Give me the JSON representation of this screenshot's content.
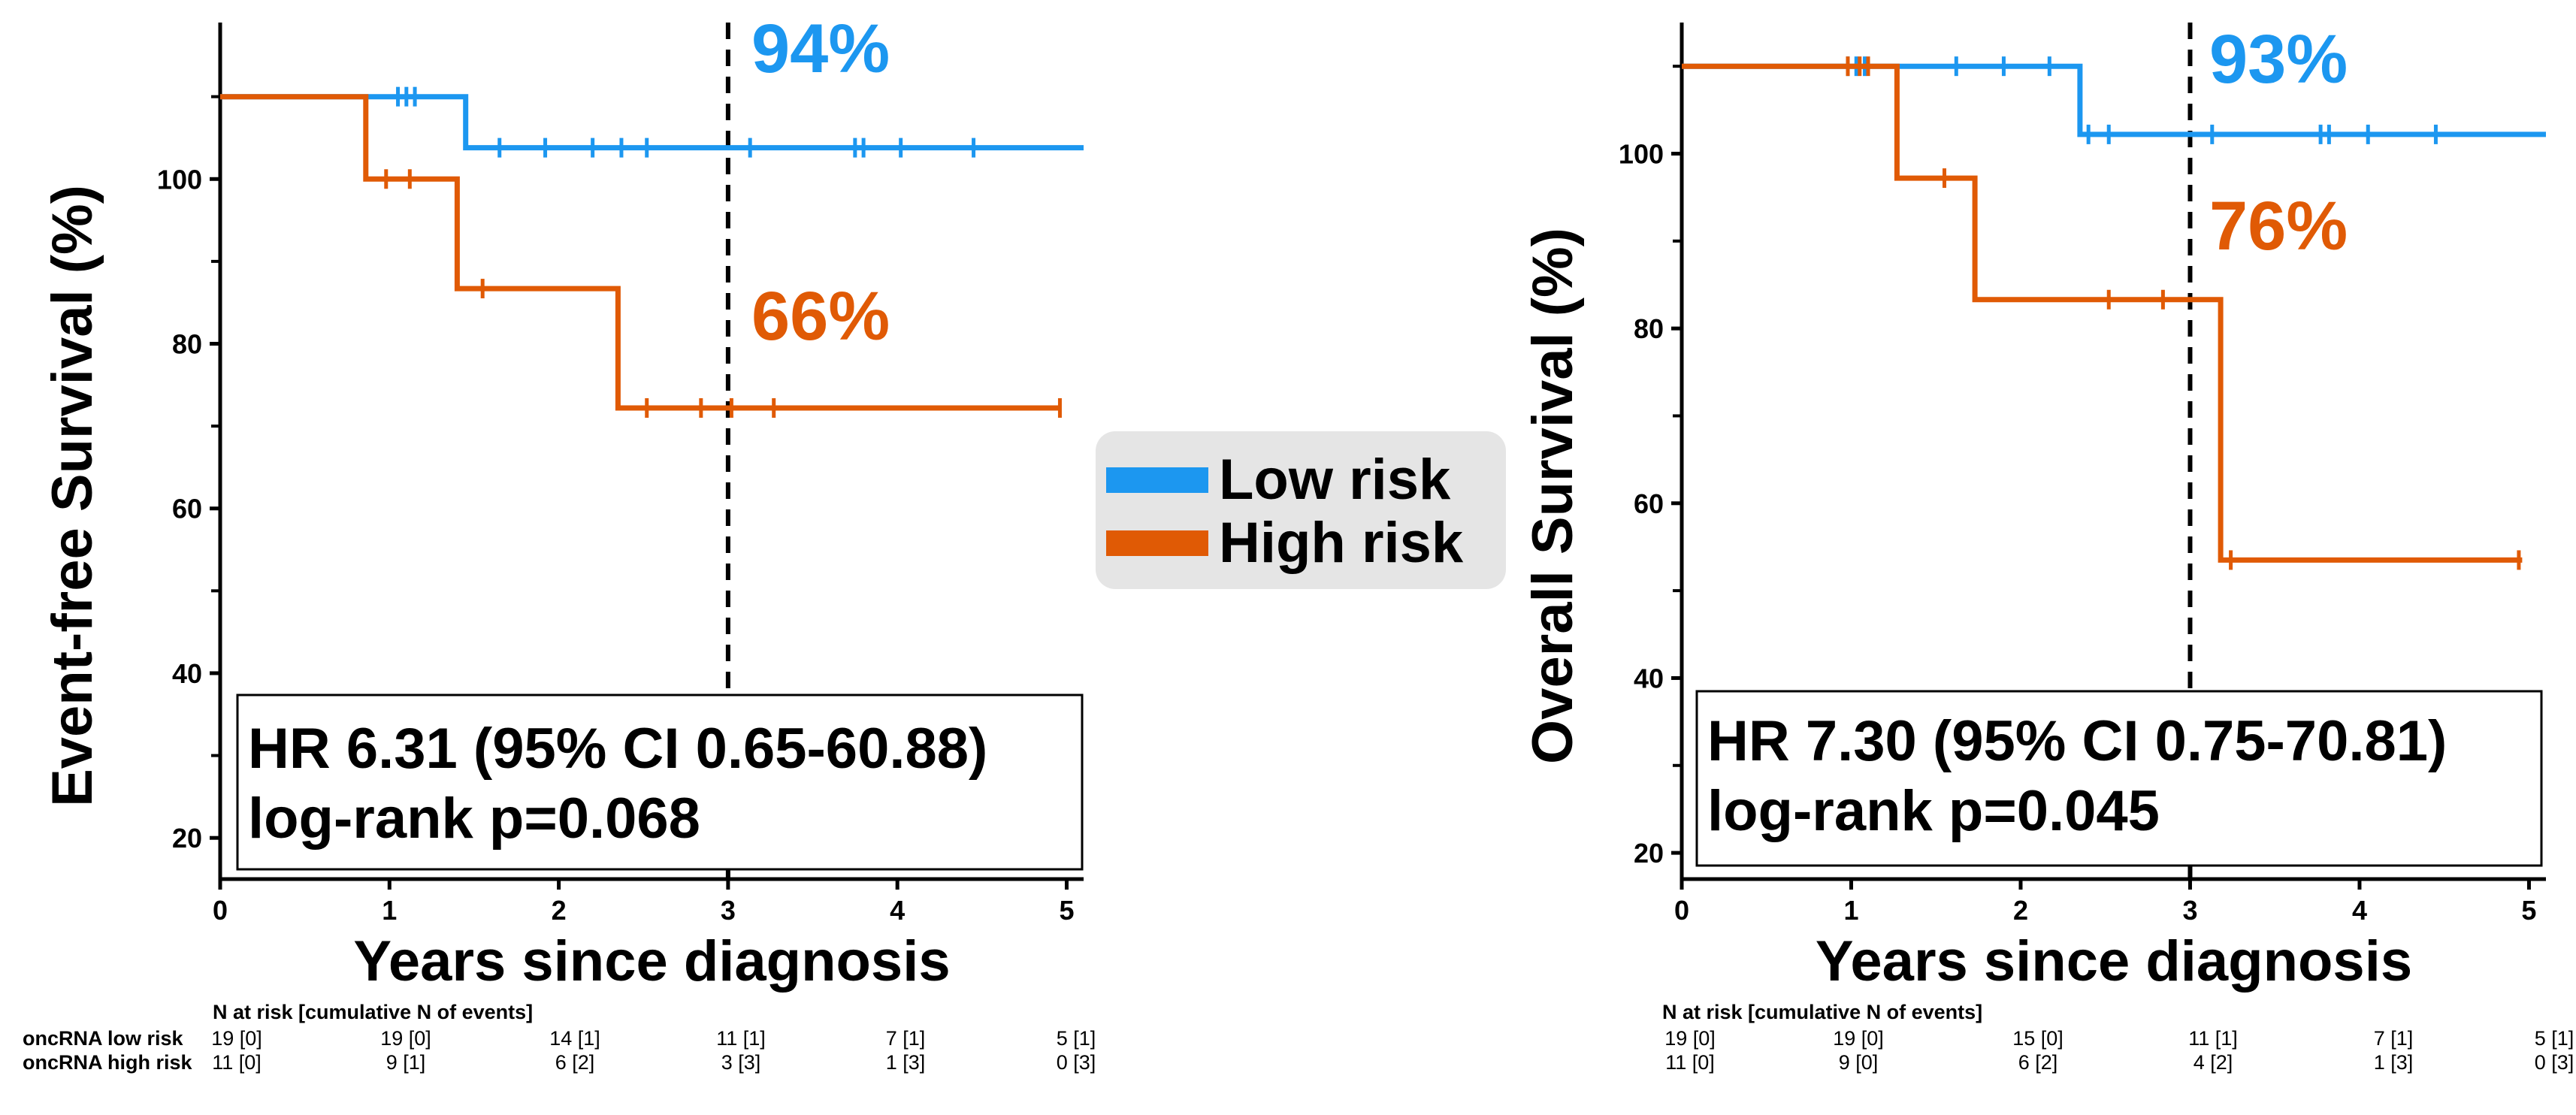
{
  "chart_data": [
    {
      "type": "line",
      "subtype": "kaplan-meier",
      "title": "",
      "xlabel": "Years since diagnosis",
      "ylabel": "Event-free Survival (%)",
      "xlim": [
        0,
        5.1
      ],
      "ylim": [
        15,
        119
      ],
      "xticks": [
        0,
        1,
        2,
        3,
        4,
        5
      ],
      "xtick_labels": [
        "0",
        "1",
        "2",
        "3",
        "4",
        "5"
      ],
      "yticks": [
        20,
        40,
        60,
        80,
        100
      ],
      "ytick_labels": [
        "20",
        "40",
        "60",
        "80",
        "100"
      ],
      "y_minor_ticks": [
        30,
        50,
        70,
        90,
        110
      ],
      "reference_line_x": 3,
      "series": [
        {
          "name": "Low risk",
          "color": "#1c97f0",
          "steps": [
            [
              0,
              110
            ],
            [
              1.45,
              110
            ],
            [
              1.45,
              103.8
            ],
            [
              5.1,
              103.8
            ]
          ],
          "censor_times": [
            1.05,
            1.1,
            1.15,
            1.65,
            1.92,
            2.2,
            2.37,
            2.52,
            3.13,
            3.75,
            3.8,
            4.02,
            4.45
          ],
          "annotation": "94%"
        },
        {
          "name": "High risk",
          "color": "#e05a05",
          "steps": [
            [
              0,
              110
            ],
            [
              0.86,
              110
            ],
            [
              0.86,
              100
            ],
            [
              1.4,
              100
            ],
            [
              1.4,
              86.7
            ],
            [
              2.35,
              86.7
            ],
            [
              2.35,
              72.2
            ],
            [
              4.96,
              72.2
            ]
          ],
          "censor_times": [
            0.98,
            1.12,
            1.55,
            2.52,
            2.84,
            3.02,
            3.27,
            4.96
          ],
          "annotation": "66%"
        }
      ],
      "stats": {
        "hr": "HR 6.31 (95% CI 0.65-60.88)",
        "p": "log-rank p=0.068"
      },
      "risk_table": {
        "title": "N at risk [cumulative N of events]",
        "rows": [
          {
            "label": "oncRNA low risk",
            "values": [
              "19 [0]",
              "19 [0]",
              "14 [1]",
              "11 [1]",
              "7 [1]",
              "5 [1]"
            ]
          },
          {
            "label": "oncRNA high risk",
            "values": [
              "11 [0]",
              "9 [1]",
              "6 [2]",
              "3 [3]",
              "1 [3]",
              "0 [3]"
            ]
          }
        ]
      }
    },
    {
      "type": "line",
      "subtype": "kaplan-meier",
      "title": "",
      "xlabel": "Years since diagnosis",
      "ylabel": "Overall Survival (%)",
      "xlim": [
        0,
        5.1
      ],
      "ylim": [
        17,
        115
      ],
      "xticks": [
        0,
        1,
        2,
        3,
        4,
        5
      ],
      "xtick_labels": [
        "0",
        "1",
        "2",
        "3",
        "4",
        "5"
      ],
      "yticks": [
        20,
        40,
        60,
        80,
        100
      ],
      "ytick_labels": [
        "20",
        "40",
        "60",
        "80",
        "100"
      ],
      "y_minor_ticks": [
        30,
        50,
        70,
        90,
        110
      ],
      "reference_line_x": 3,
      "series": [
        {
          "name": "Low risk",
          "color": "#1c97f0",
          "steps": [
            [
              0,
              110
            ],
            [
              2.35,
              110
            ],
            [
              2.35,
              102.2
            ],
            [
              5.1,
              102.2
            ]
          ],
          "censor_times": [
            0.98,
            1.03,
            1.08,
            1.62,
            1.9,
            2.17,
            2.4,
            2.52,
            3.13,
            3.77,
            3.82,
            4.05,
            4.45
          ],
          "annotation": "93%"
        },
        {
          "name": "High risk",
          "color": "#e05a05",
          "steps": [
            [
              0,
              110
            ],
            [
              1.27,
              110
            ],
            [
              1.27,
              97.2
            ],
            [
              1.73,
              97.2
            ],
            [
              1.73,
              83.3
            ],
            [
              3.18,
              83.3
            ],
            [
              3.18,
              53.5
            ],
            [
              4.96,
              53.5
            ]
          ],
          "censor_times": [
            0.98,
            1.05,
            1.1,
            1.55,
            2.52,
            2.84,
            3.24,
            4.94
          ],
          "annotation": "76%"
        }
      ],
      "stats": {
        "hr": "HR 7.30 (95% CI 0.75-70.81)",
        "p": "log-rank p=0.045"
      },
      "risk_table": {
        "title": "N at risk [cumulative N of events]",
        "rows": [
          {
            "label": "",
            "values": [
              "19 [0]",
              "19 [0]",
              "15 [0]",
              "11 [1]",
              "7 [1]",
              "5 [1]"
            ]
          },
          {
            "label": "",
            "values": [
              "11 [0]",
              "9 [0]",
              "6 [2]",
              "4 [2]",
              "1 [3]",
              "0 [3]"
            ]
          }
        ]
      }
    }
  ],
  "legend": {
    "placement": "center",
    "entries": [
      {
        "label": "Low risk",
        "color": "#1c97f0"
      },
      {
        "label": "High risk",
        "color": "#e05a05"
      }
    ]
  }
}
